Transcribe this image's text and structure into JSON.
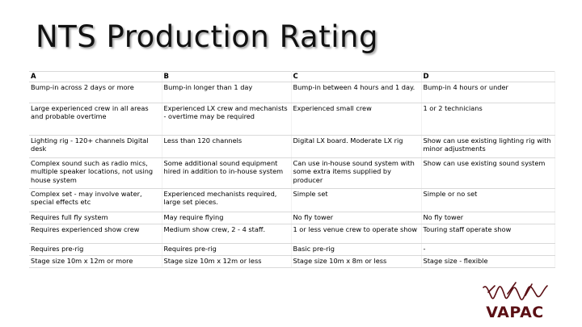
{
  "slide": {
    "title": "NTS Production Rating"
  },
  "table": {
    "headers": [
      "A",
      "B",
      "C",
      "D"
    ],
    "rows": [
      [
        "Bump-in across 2 days or more",
        "Bump-in longer than 1 day",
        "Bump-in between 4 hours and 1 day.",
        "Bump-in 4 hours or under"
      ],
      [
        "Large experienced crew in all areas and probable overtime",
        "Experienced LX crew and mechanists - overtime may be required",
        "Experienced small crew",
        "1 or 2 technicians"
      ],
      [
        "Lighting rig - 120+ channels Digital desk",
        "Less than 120 channels",
        "Digital LX board. Moderate LX rig",
        "Show can use existing lighting rig with minor adjustments"
      ],
      [
        "Complex sound such as radio mics, multiple speaker locations, not using house system",
        "Some additional sound equipment hired in addition to in-house system",
        "Can use in-house sound system with some extra items supplied by producer",
        "Show can use existing sound system"
      ],
      [
        "Complex set - may involve water, special effects etc",
        "Experienced mechanists required, large set pieces.",
        "Simple set",
        "Simple or no set"
      ],
      [
        "Requires full fly system",
        "May require flying",
        "No fly tower",
        "No fly tower"
      ],
      [
        "Requires experienced show crew",
        "Medium show crew, 2 - 4 staff.",
        "1 or less venue crew to operate show",
        "Touring staff operate show"
      ],
      [
        "Requires pre-rig",
        "Requires pre-rig",
        "Basic pre-rig",
        "-"
      ],
      [
        "Stage size 10m x 12m or more",
        "Stage size 10m x 12m or less",
        "Stage size 10m x 8m or less",
        "Stage size - flexible"
      ]
    ]
  },
  "logo": {
    "text": "VAPAC",
    "color": "#5a0f14"
  }
}
